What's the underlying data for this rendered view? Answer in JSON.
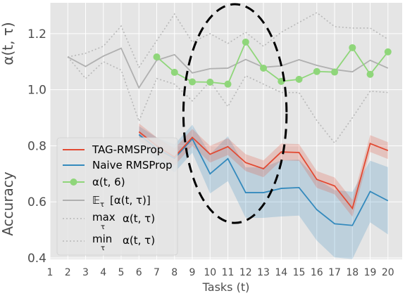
{
  "chart_data": {
    "type": "line",
    "xlabel": "Tasks (t)",
    "ylabel_top": "α(t, τ)",
    "ylabel_bottom": "Accuracy",
    "x_ticks": [
      "1",
      "2",
      "3",
      "4",
      "5",
      "6",
      "7",
      "8",
      "9",
      "10",
      "11",
      "12",
      "13",
      "14",
      "15",
      "16",
      "17",
      "18",
      "19",
      "20"
    ],
    "y_ticks": [
      "0.4",
      "0.6",
      "0.8",
      "1.0",
      "1.2"
    ],
    "xlim": [
      1,
      20.8
    ],
    "ylim": [
      0.395,
      1.31
    ],
    "grid": true,
    "legend_position": "lower-left",
    "legend": {
      "tag": "TAG-RMSProp",
      "naive": "Naive RMSProp",
      "alpha6": "α(t, 6)",
      "expect_sym": "𝔼",
      "expect_sub": "τ",
      "expect_rest": "[α(t, τ)]",
      "max_word": "max",
      "max_sub": "τ",
      "max_rest": "α(t, τ)",
      "min_word": "min",
      "min_sub": "τ",
      "min_rest": "α(t, τ)"
    },
    "colors": {
      "tag": "#e24a33",
      "naive": "#348abd",
      "alpha6": "#8fd67a",
      "mean": "#b0b0b0",
      "minmax": "#b8b8b8",
      "background": "#e5e5e5",
      "grid": "#ffffff"
    },
    "series": [
      {
        "key": "tag",
        "x": [
          6,
          7,
          8,
          9,
          10,
          11,
          12,
          13,
          14,
          15,
          16,
          17,
          18,
          19,
          20
        ],
        "y": [
          0.85,
          0.8,
          0.76,
          0.83,
          0.77,
          0.797,
          0.74,
          0.718,
          0.778,
          0.776,
          0.68,
          0.657,
          0.577,
          0.808,
          0.783
        ],
        "band": [
          0.03,
          0.03,
          0.03,
          0.03,
          0.03,
          0.03,
          0.03,
          0.03,
          0.03,
          0.03,
          0.03,
          0.03,
          0.03,
          0.03,
          0.03
        ]
      },
      {
        "key": "naive",
        "x": [
          6,
          7,
          8,
          9,
          10,
          11,
          12,
          13,
          14,
          15,
          16,
          17,
          18,
          19,
          20
        ],
        "y": [
          0.84,
          0.79,
          0.755,
          0.825,
          0.7,
          0.754,
          0.633,
          0.633,
          0.648,
          0.651,
          0.572,
          0.522,
          0.516,
          0.637,
          0.604
        ],
        "band": [
          0.03,
          0.04,
          0.05,
          0.05,
          0.07,
          0.08,
          0.09,
          0.09,
          0.1,
          0.1,
          0.11,
          0.12,
          0.12,
          0.11,
          0.12
        ]
      },
      {
        "key": "alpha6",
        "x": [
          7,
          8,
          9,
          10,
          11,
          12,
          13,
          14,
          15,
          16,
          17,
          18,
          19,
          20
        ],
        "y": [
          1.117,
          1.062,
          1.028,
          1.027,
          1.02,
          1.17,
          1.077,
          1.03,
          1.037,
          1.065,
          1.063,
          1.15,
          1.055,
          1.135
        ]
      },
      {
        "key": "mean",
        "x": [
          2,
          3,
          4,
          5,
          6,
          7,
          8,
          9,
          10,
          11,
          12,
          13,
          14,
          15,
          16,
          17,
          18,
          19,
          20
        ],
        "y": [
          1.117,
          1.083,
          1.12,
          1.148,
          1.007,
          1.105,
          1.125,
          1.06,
          1.075,
          1.077,
          1.108,
          1.08,
          1.085,
          1.107,
          1.087,
          1.072,
          1.064,
          1.105,
          1.077
        ]
      },
      {
        "key": "max",
        "x": [
          2,
          3,
          4,
          5,
          6,
          7,
          8,
          9,
          10,
          11,
          12,
          13,
          14,
          15,
          16,
          17,
          18,
          19,
          20
        ],
        "y": [
          1.117,
          1.13,
          1.155,
          1.227,
          1.08,
          1.175,
          1.27,
          1.17,
          1.2,
          1.165,
          1.205,
          1.155,
          1.205,
          1.24,
          1.275,
          1.225,
          1.22,
          1.22,
          1.18
        ]
      },
      {
        "key": "min",
        "x": [
          2,
          3,
          4,
          5,
          6,
          7,
          8,
          9,
          10,
          11,
          12,
          13,
          14,
          15,
          16,
          17,
          18,
          19,
          20
        ],
        "y": [
          1.117,
          1.04,
          1.1,
          1.07,
          0.888,
          1.04,
          1.02,
          0.96,
          1.03,
          0.94,
          1.05,
          1.02,
          0.99,
          0.99,
          0.89,
          0.81,
          0.9,
          0.995,
          0.99
        ]
      }
    ],
    "annotation": {
      "type": "dashed-ellipse",
      "center": [
        11.4,
        0.915
      ],
      "radius_x": 2.9,
      "radius_y": 0.39
    }
  }
}
